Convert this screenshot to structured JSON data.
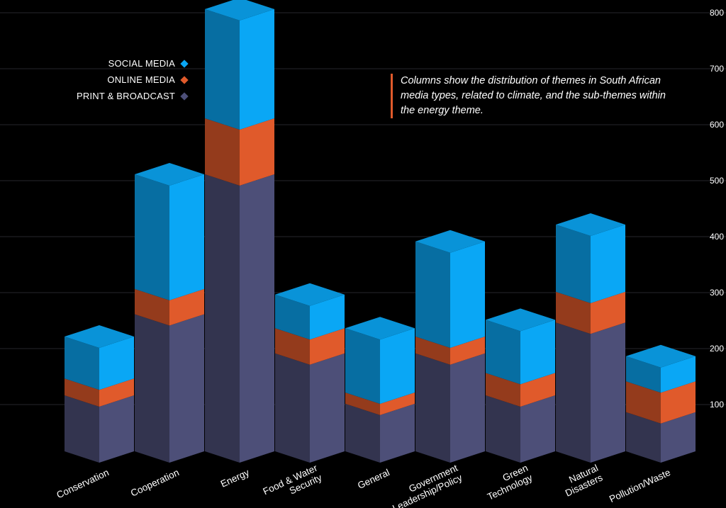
{
  "legend": {
    "items": [
      {
        "label": "SOCIAL MEDIA",
        "color": "#0aa7f5"
      },
      {
        "label": "ONLINE MEDIA",
        "color": "#e05a2b"
      },
      {
        "label": "PRINT & BROADCAST",
        "color": "#4d4f78"
      }
    ]
  },
  "note": {
    "text": "Columns show the distribution of themes in South African media types, related to climate, and the sub-themes within the energy theme."
  },
  "chart_data": {
    "type": "bar",
    "stacked": true,
    "style": "3d-isometric",
    "categories": [
      "Conservation",
      "Cooperation",
      "Energy",
      "Food & Water Security",
      "General",
      "Government Leadership/Policy",
      "Green Technology",
      "Natural Disasters",
      "Pollution/Waste"
    ],
    "series": [
      {
        "name": "PRINT & BROADCAST",
        "color": "#4d4f78",
        "values": [
          100,
          245,
          495,
          175,
          85,
          175,
          100,
          230,
          70
        ]
      },
      {
        "name": "ONLINE MEDIA",
        "color": "#e05a2b",
        "values": [
          30,
          45,
          100,
          45,
          20,
          30,
          40,
          55,
          55
        ]
      },
      {
        "name": "SOCIAL MEDIA",
        "color": "#0aa7f5",
        "values": [
          75,
          205,
          195,
          60,
          115,
          170,
          95,
          120,
          45
        ]
      }
    ],
    "y_ticks": [
      100,
      200,
      300,
      400,
      500,
      600,
      700,
      800
    ],
    "ylim": [
      0,
      800
    ],
    "y_axis_position": "right",
    "grid": true,
    "legend_position": "top-left"
  }
}
